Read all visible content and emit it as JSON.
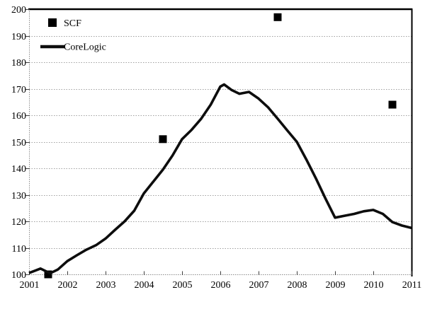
{
  "chart_data": {
    "type": "line",
    "title": "",
    "xlabel": "",
    "ylabel": "",
    "x_axis": {
      "min": 2001,
      "max": 2011,
      "tick_labels": [
        "2001",
        "2002",
        "2003",
        "2004",
        "2005",
        "2006",
        "2007",
        "2008",
        "2009",
        "2010",
        "2011"
      ]
    },
    "y_axis": {
      "min": 100,
      "max": 200,
      "tick_step": 10,
      "tick_labels": [
        "100",
        "110",
        "120",
        "130",
        "140",
        "150",
        "160",
        "170",
        "180",
        "190",
        "200"
      ]
    },
    "grid": "horizontal dotted gridlines every 10 units",
    "legend_position": "top-left inside plot area",
    "series": [
      {
        "name": "SCF",
        "type": "scatter",
        "marker": "filled-square",
        "color": "#000000",
        "points": [
          [
            2001.5,
            100
          ],
          [
            2004.5,
            151
          ],
          [
            2007.5,
            197
          ],
          [
            2010.5,
            164
          ]
        ]
      },
      {
        "name": "CoreLogic",
        "type": "line",
        "color": "#0d0d0d",
        "points": [
          [
            2001.0,
            100.5
          ],
          [
            2001.3,
            102.2
          ],
          [
            2001.55,
            100.4
          ],
          [
            2001.75,
            101.8
          ],
          [
            2002.0,
            105.0
          ],
          [
            2002.25,
            107.2
          ],
          [
            2002.5,
            109.3
          ],
          [
            2002.75,
            111.0
          ],
          [
            2003.0,
            113.5
          ],
          [
            2003.25,
            116.8
          ],
          [
            2003.5,
            120.0
          ],
          [
            2003.75,
            124.0
          ],
          [
            2004.0,
            130.5
          ],
          [
            2004.25,
            135.0
          ],
          [
            2004.5,
            139.5
          ],
          [
            2004.75,
            144.8
          ],
          [
            2005.0,
            151.0
          ],
          [
            2005.25,
            154.5
          ],
          [
            2005.5,
            158.7
          ],
          [
            2005.75,
            164.0
          ],
          [
            2006.0,
            170.8
          ],
          [
            2006.1,
            171.6
          ],
          [
            2006.3,
            169.5
          ],
          [
            2006.5,
            168.1
          ],
          [
            2006.75,
            168.8
          ],
          [
            2007.0,
            166.3
          ],
          [
            2007.25,
            163.0
          ],
          [
            2007.5,
            158.7
          ],
          [
            2007.75,
            154.3
          ],
          [
            2008.0,
            150.0
          ],
          [
            2008.25,
            143.3
          ],
          [
            2008.5,
            136.2
          ],
          [
            2008.75,
            128.6
          ],
          [
            2009.0,
            121.4
          ],
          [
            2009.25,
            122.1
          ],
          [
            2009.5,
            122.8
          ],
          [
            2009.75,
            123.8
          ],
          [
            2010.0,
            124.3
          ],
          [
            2010.25,
            122.8
          ],
          [
            2010.5,
            119.7
          ],
          [
            2010.75,
            118.4
          ],
          [
            2011.0,
            117.5
          ]
        ]
      }
    ],
    "colors": {
      "background": "#ffffff",
      "plot_border": "#000000",
      "gridline": "#a0a0a0",
      "axis_line": "#8c8c8c",
      "tick": "#404040",
      "text": "#000000",
      "scf_marker": "#000000",
      "corelogic_line": "#0d0d0d"
    }
  }
}
